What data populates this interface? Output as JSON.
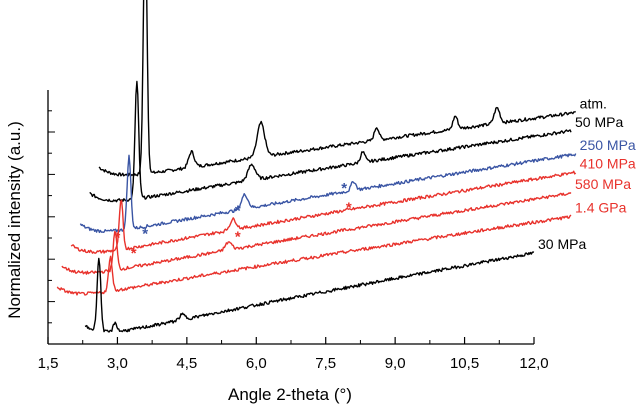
{
  "chart_data": {
    "type": "line",
    "xlabel": "Angle 2-theta (°)",
    "ylabel": "Normalized intensity (a.u.)",
    "xlim": [
      1.5,
      12.0
    ],
    "x_ticks": [
      "1,5",
      "3,0",
      "4,5",
      "6,0",
      "7,5",
      "9,0",
      "10,5",
      "12,0"
    ],
    "x_tick_values": [
      1.5,
      3.0,
      4.5,
      6.0,
      7.5,
      9.0,
      10.5,
      12.0
    ],
    "y_tick_labels_shown": false,
    "grid": false,
    "legend": "series labels printed at right end of each trace",
    "series": [
      {
        "name": "atm.",
        "color": "#000000",
        "x_start": 2.6,
        "x_end": 12.9,
        "y_start": 6.2,
        "y_end": 8.9,
        "peaks": [
          [
            3.6,
            9.6,
            0.04
          ],
          [
            4.6,
            0.6,
            0.06
          ],
          [
            6.1,
            1.3,
            0.08
          ],
          [
            8.6,
            0.5,
            0.05
          ],
          [
            10.3,
            0.5,
            0.05
          ],
          [
            11.2,
            0.6,
            0.06
          ]
        ]
      },
      {
        "name": "50 MPa",
        "color": "#000000",
        "x_start": 2.4,
        "x_end": 12.8,
        "y_start": 5.2,
        "y_end": 8.2,
        "peaks": [
          [
            3.42,
            4.5,
            0.04
          ],
          [
            5.9,
            0.6,
            0.08
          ],
          [
            8.3,
            0.4,
            0.05
          ]
        ]
      },
      {
        "name": "250 MPa",
        "color": "#3a55a4",
        "x_start": 2.2,
        "x_end": 12.9,
        "y_start": 4.0,
        "y_end": 7.3,
        "peaks": [
          [
            3.25,
            2.8,
            0.04
          ],
          [
            5.75,
            0.55,
            0.07
          ],
          [
            8.1,
            0.35,
            0.05
          ]
        ]
      },
      {
        "name": "410 MPa",
        "color": "#e8322c",
        "x_start": 2.0,
        "x_end": 12.9,
        "y_start": 3.2,
        "y_end": 6.6,
        "peaks": [
          [
            3.08,
            1.9,
            0.04
          ],
          [
            5.5,
            0.4,
            0.07
          ]
        ]
      },
      {
        "name": "580 MPa",
        "color": "#e8322c",
        "x_start": 1.8,
        "x_end": 12.8,
        "y_start": 2.4,
        "y_end": 5.8,
        "peaks": [
          [
            2.95,
            1.5,
            0.04
          ],
          [
            5.4,
            0.3,
            0.07
          ]
        ]
      },
      {
        "name": "1.4 GPa",
        "color": "#e8322c",
        "x_start": 1.7,
        "x_end": 12.8,
        "y_start": 1.6,
        "y_end": 4.9,
        "peaks": [
          [
            2.85,
            1.3,
            0.04
          ]
        ]
      },
      {
        "name": "30 MPa",
        "color": "#000000",
        "x_start": 2.3,
        "x_end": 12.0,
        "y_start": 0.1,
        "y_end": 3.5,
        "peaks": [
          [
            2.6,
            2.8,
            0.04
          ],
          [
            2.95,
            0.35,
            0.04
          ],
          [
            4.4,
            0.2,
            0.06
          ]
        ]
      }
    ],
    "annotations": [
      {
        "text": "*",
        "x": 3.6,
        "y": 4.05,
        "color": "#3a55a4"
      },
      {
        "text": "*",
        "x": 5.6,
        "y": 4.95,
        "color": "#3a55a4"
      },
      {
        "text": "*",
        "x": 7.9,
        "y": 5.8,
        "color": "#3a55a4"
      },
      {
        "text": "*",
        "x": 3.0,
        "y": 3.9,
        "color": "#e8322c"
      },
      {
        "text": "*",
        "x": 3.35,
        "y": 3.3,
        "color": "#e8322c"
      },
      {
        "text": "*",
        "x": 5.6,
        "y": 3.95,
        "color": "#e8322c"
      },
      {
        "text": "*",
        "x": 8.0,
        "y": 5.05,
        "color": "#e8322c"
      }
    ]
  }
}
